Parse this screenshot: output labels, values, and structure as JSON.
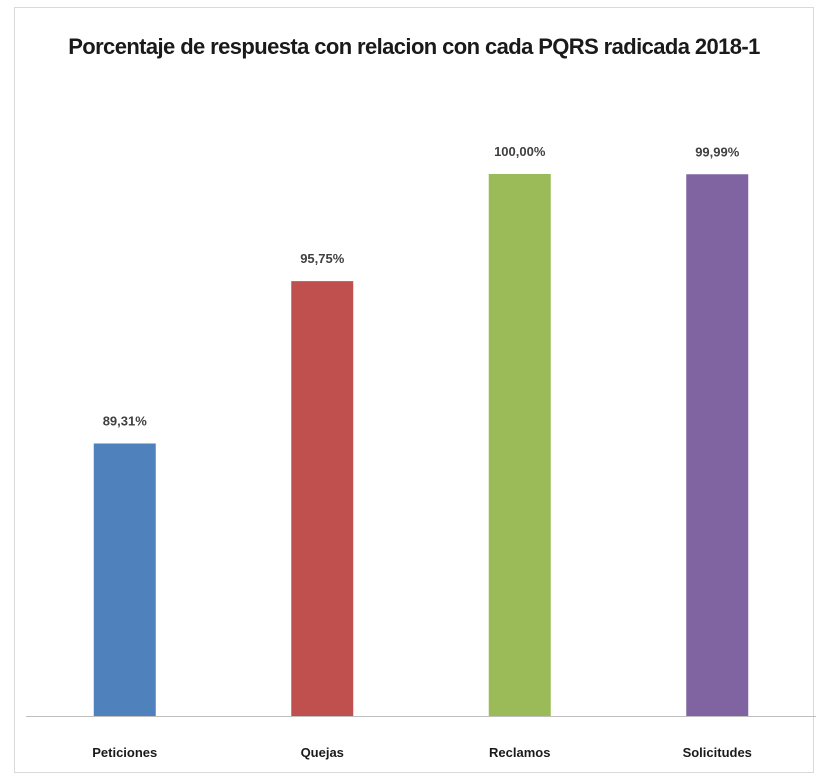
{
  "chart_data": {
    "type": "bar",
    "title": "Porcentaje de respuesta con relacion con cada PQRS radicada 2018-1",
    "xlabel": "",
    "ylabel": "",
    "categories": [
      "Peticiones",
      "Quejas",
      "Reclamos",
      "Solicitudes"
    ],
    "values": [
      89.31,
      95.75,
      100.0,
      99.99
    ],
    "data_labels": [
      "89,31%",
      "95,75%",
      "100,00%",
      "99,99%"
    ],
    "colors": [
      "#4f81bd",
      "#c0504d",
      "#9bbb59",
      "#8064a2"
    ],
    "ylim": [
      78.5,
      100
    ],
    "grid": false,
    "legend": "none"
  }
}
